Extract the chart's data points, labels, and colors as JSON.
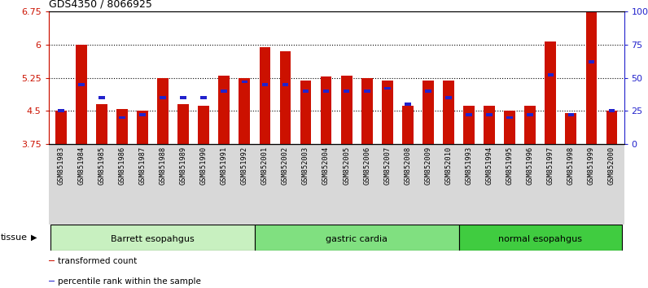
{
  "title": "GDS4350 / 8066925",
  "samples": [
    "GSM851983",
    "GSM851984",
    "GSM851985",
    "GSM851986",
    "GSM851987",
    "GSM851988",
    "GSM851989",
    "GSM851990",
    "GSM851991",
    "GSM851992",
    "GSM852001",
    "GSM852002",
    "GSM852003",
    "GSM852004",
    "GSM852005",
    "GSM852006",
    "GSM852007",
    "GSM852008",
    "GSM852009",
    "GSM852010",
    "GSM851993",
    "GSM851994",
    "GSM851995",
    "GSM851996",
    "GSM851997",
    "GSM851998",
    "GSM851999",
    "GSM852000"
  ],
  "transformed_count": [
    4.5,
    6.0,
    4.65,
    4.55,
    4.5,
    5.25,
    4.65,
    4.62,
    5.3,
    5.25,
    5.95,
    5.85,
    5.18,
    5.28,
    5.3,
    5.25,
    5.18,
    4.62,
    5.18,
    5.18,
    4.62,
    4.62,
    4.5,
    4.62,
    6.08,
    4.45,
    6.73,
    4.5
  ],
  "percentile_rank": [
    25,
    45,
    35,
    20,
    22,
    35,
    35,
    35,
    40,
    47,
    45,
    45,
    40,
    40,
    40,
    40,
    42,
    30,
    40,
    35,
    22,
    22,
    20,
    22,
    52,
    22,
    62,
    25
  ],
  "groups": [
    {
      "label": "Barrett esopahgus",
      "start": 0,
      "end": 10,
      "color": "#c8f0c0"
    },
    {
      "label": "gastric cardia",
      "start": 10,
      "end": 20,
      "color": "#80e080"
    },
    {
      "label": "normal esopahgus",
      "start": 20,
      "end": 28,
      "color": "#40cc40"
    }
  ],
  "ylim_left": [
    3.75,
    6.75
  ],
  "ylim_right": [
    0,
    100
  ],
  "yticks_left": [
    3.75,
    4.5,
    5.25,
    6.0,
    6.75
  ],
  "ytick_labels_left": [
    "3.75",
    "4.5",
    "5.25",
    "6",
    "6.75"
  ],
  "yticks_right": [
    0,
    25,
    50,
    75,
    100
  ],
  "ytick_labels_right": [
    "0",
    "25",
    "50",
    "75",
    "100%"
  ],
  "bar_color": "#cc1100",
  "percentile_color": "#2222cc",
  "bar_width": 0.55,
  "xlabels_bg": "#d8d8d8",
  "tissue_label": "tissue",
  "legend_items": [
    {
      "label": "transformed count",
      "color": "#cc1100"
    },
    {
      "label": "percentile rank within the sample",
      "color": "#2222cc"
    }
  ]
}
